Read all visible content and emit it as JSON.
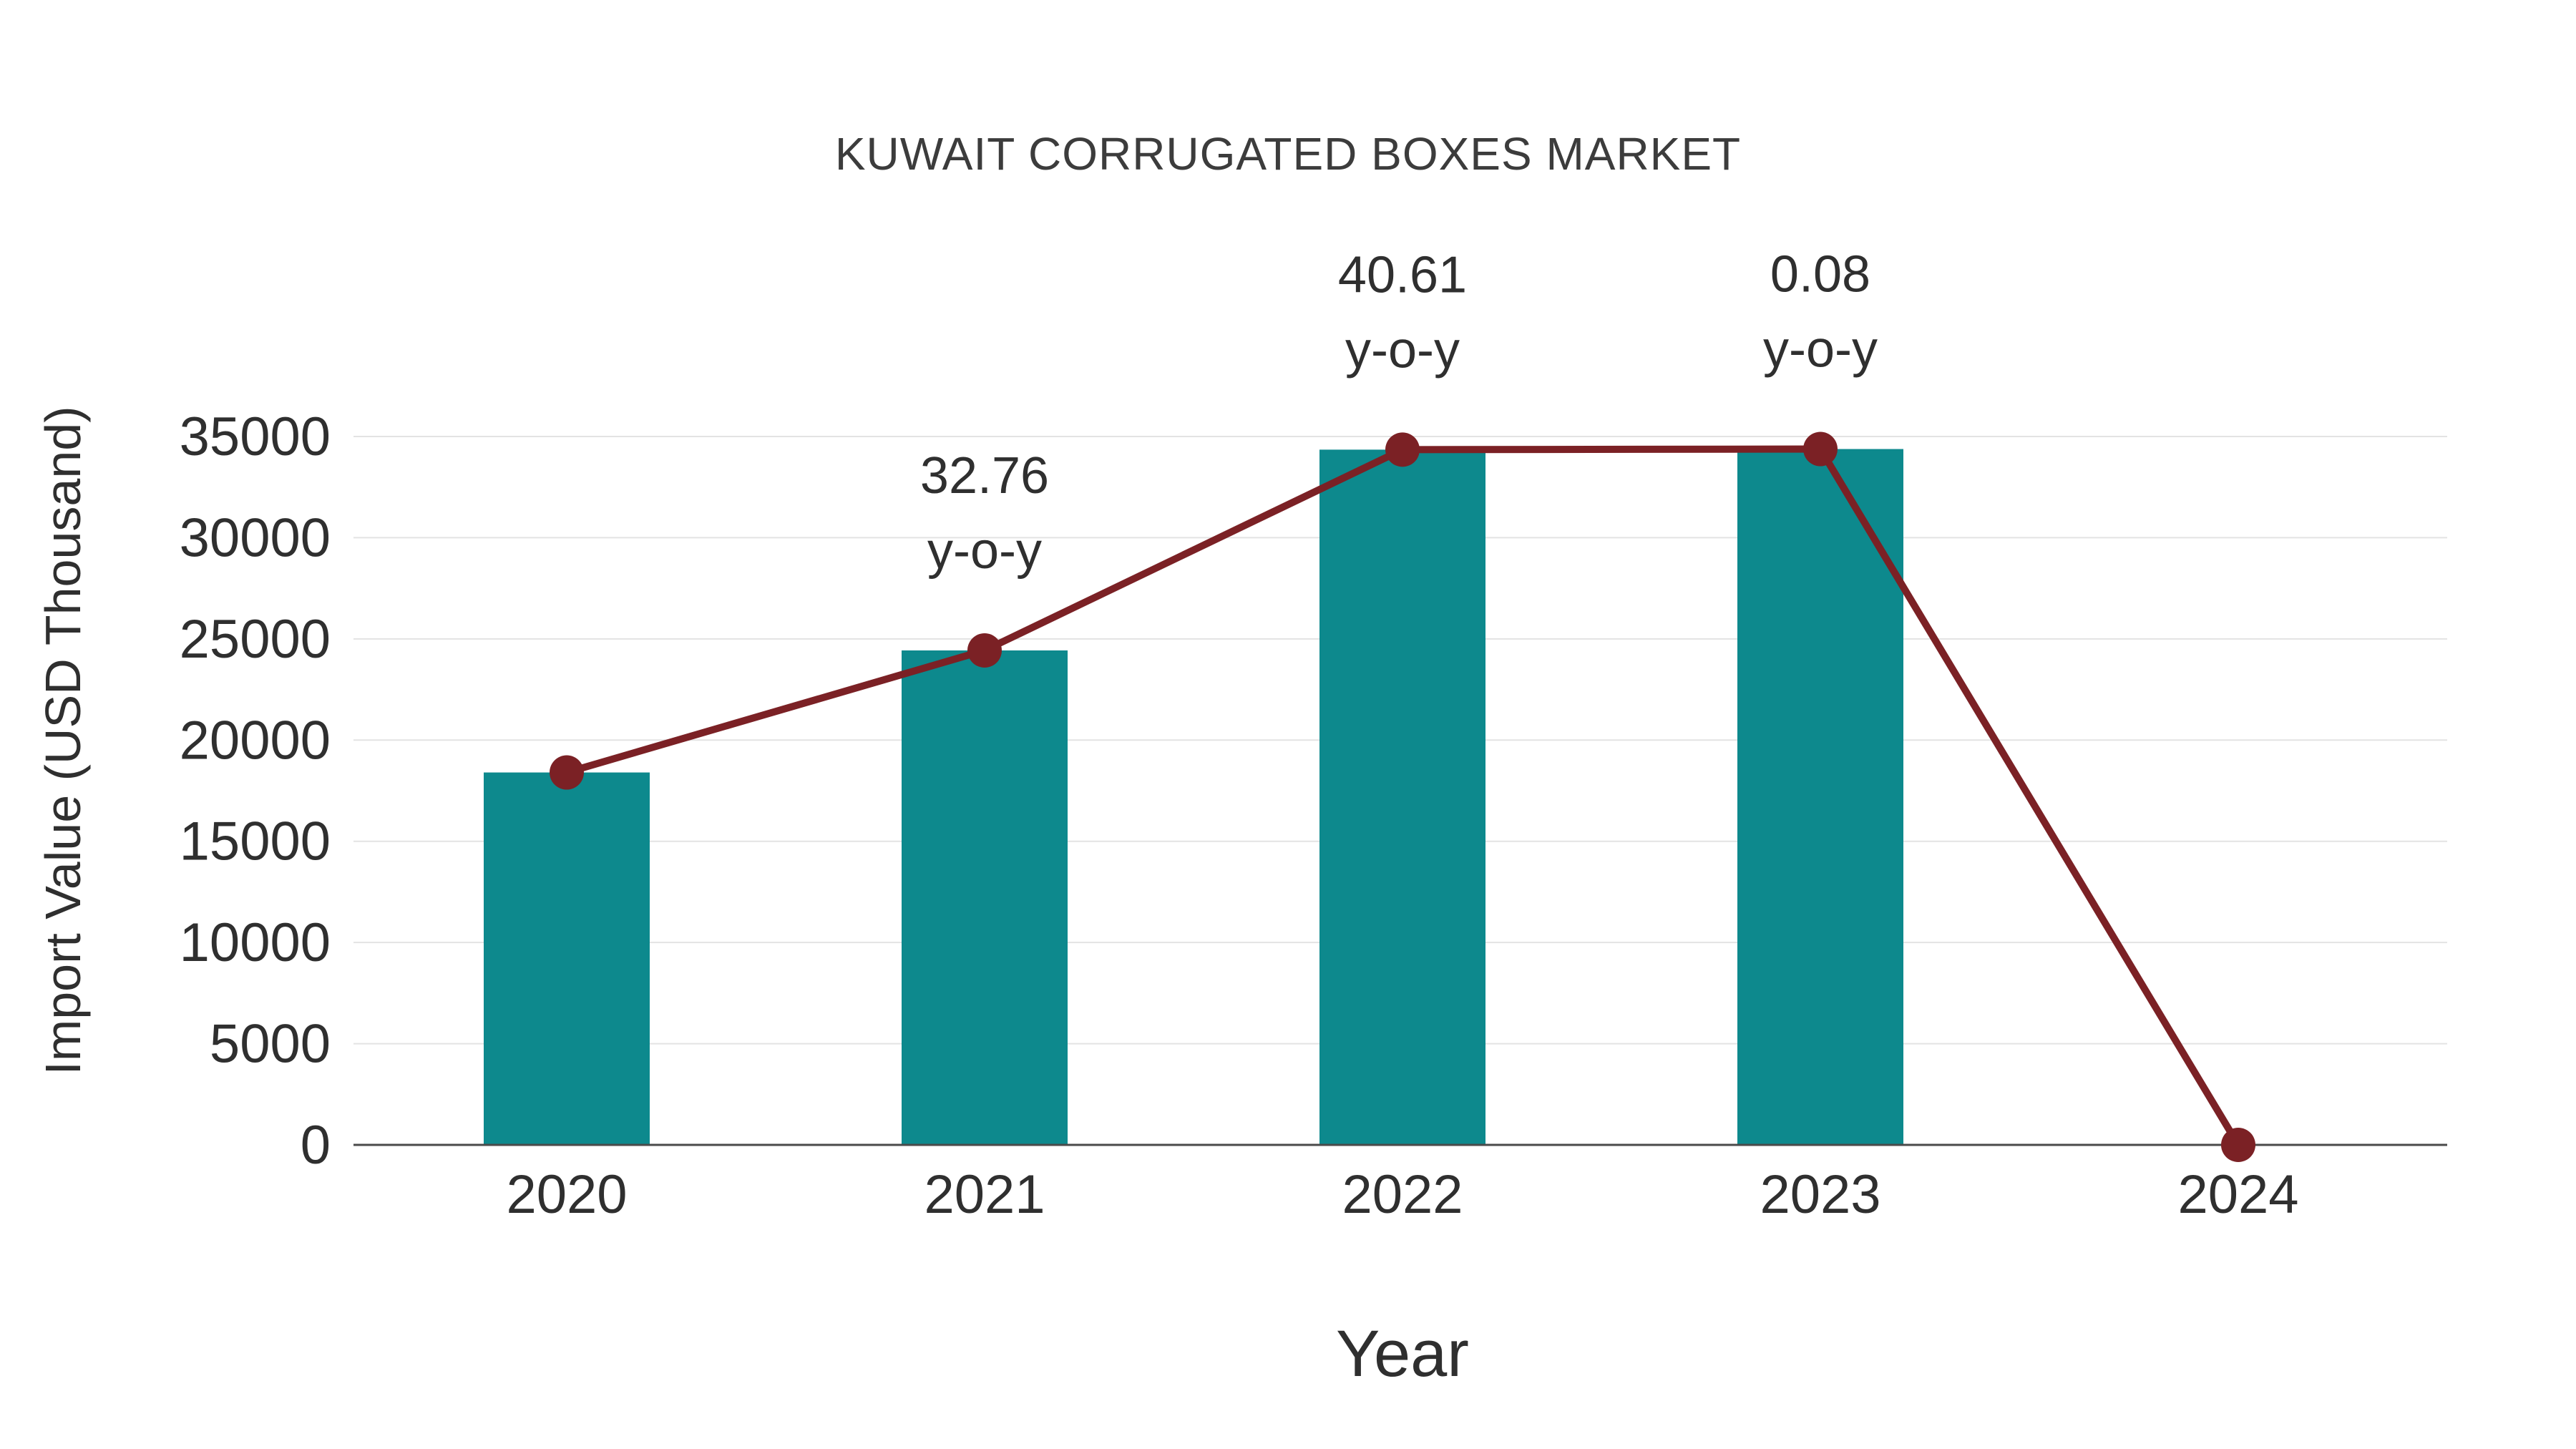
{
  "page": {
    "background": "#ffffff"
  },
  "chart_data": {
    "type": "bar+line",
    "title": "KUWAIT CORRUGATED BOXES MARKET",
    "xlabel": "Year",
    "ylabel": "Import Value (USD Thousand)",
    "categories": [
      "2020",
      "2021",
      "2022",
      "2023",
      "2024"
    ],
    "series": [
      {
        "name": "Import Value bars",
        "type": "bar",
        "color": "#0d898d",
        "values": [
          18400,
          24430,
          34350,
          34380,
          null
        ]
      },
      {
        "name": "Import Value trend line",
        "type": "line",
        "color": "#7b2125",
        "marker_color": "#7b2125",
        "values": [
          18400,
          24430,
          34350,
          34380,
          0
        ]
      }
    ],
    "annotations": [
      {
        "category": "2021",
        "lines": [
          "32.76",
          "y-o-y"
        ]
      },
      {
        "category": "2022",
        "lines": [
          "40.61",
          "y-o-y"
        ]
      },
      {
        "category": "2023",
        "lines": [
          "0.08",
          "y-o-y"
        ]
      }
    ],
    "ylim": [
      0,
      35000
    ],
    "ytick_step": 5000,
    "grid": true,
    "legend_position": "none",
    "axis_color": "#4a4a4a",
    "grid_color": "#e3e3e3",
    "text_color": "#2f2f2f"
  }
}
